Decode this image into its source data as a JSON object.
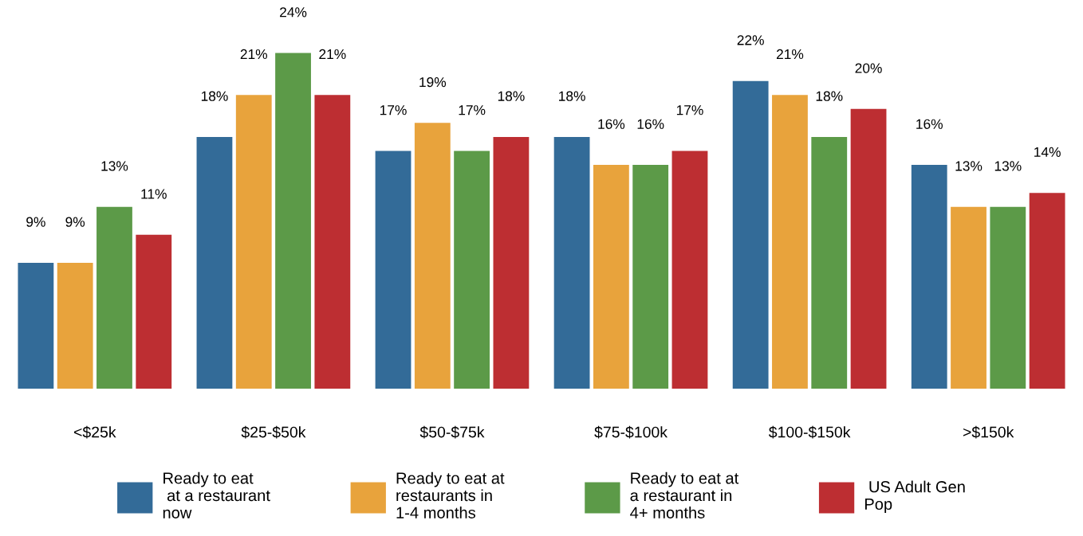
{
  "chart_data": {
    "type": "bar",
    "categories": [
      "<$25k",
      "$25-$50k",
      "$50-$75k",
      "$75-$100k",
      "$100-$150k",
      ">$150k"
    ],
    "series": [
      {
        "name": "Ready to eat\n at a restaurant\nnow",
        "color": "#336b98",
        "values": [
          9,
          18,
          17,
          18,
          22,
          16
        ],
        "value_labels": [
          "9%",
          "18%",
          "17%",
          "18%",
          "22%",
          "16%"
        ]
      },
      {
        "name": "Ready to eat at\nrestaurants in\n1-4 months",
        "color": "#e8a33c",
        "values": [
          9,
          21,
          19,
          16,
          21,
          13
        ],
        "value_labels": [
          "9%",
          "21%",
          "19%",
          "16%",
          "21%",
          "13%"
        ]
      },
      {
        "name": "Ready to eat at\na restaurant in\n4+ months",
        "color": "#5c9a48",
        "values": [
          13,
          24,
          17,
          16,
          18,
          13
        ],
        "value_labels": [
          "13%",
          "24%",
          "17%",
          "16%",
          "18%",
          "13%"
        ]
      },
      {
        "name": " US Adult Gen\nPop",
        "color": "#bd2e32",
        "values": [
          11,
          21,
          18,
          17,
          20,
          14
        ],
        "value_labels": [
          "11%",
          "21%",
          "18%",
          "17%",
          "20%",
          "14%"
        ]
      }
    ],
    "legend": "bottom",
    "grid": false
  }
}
